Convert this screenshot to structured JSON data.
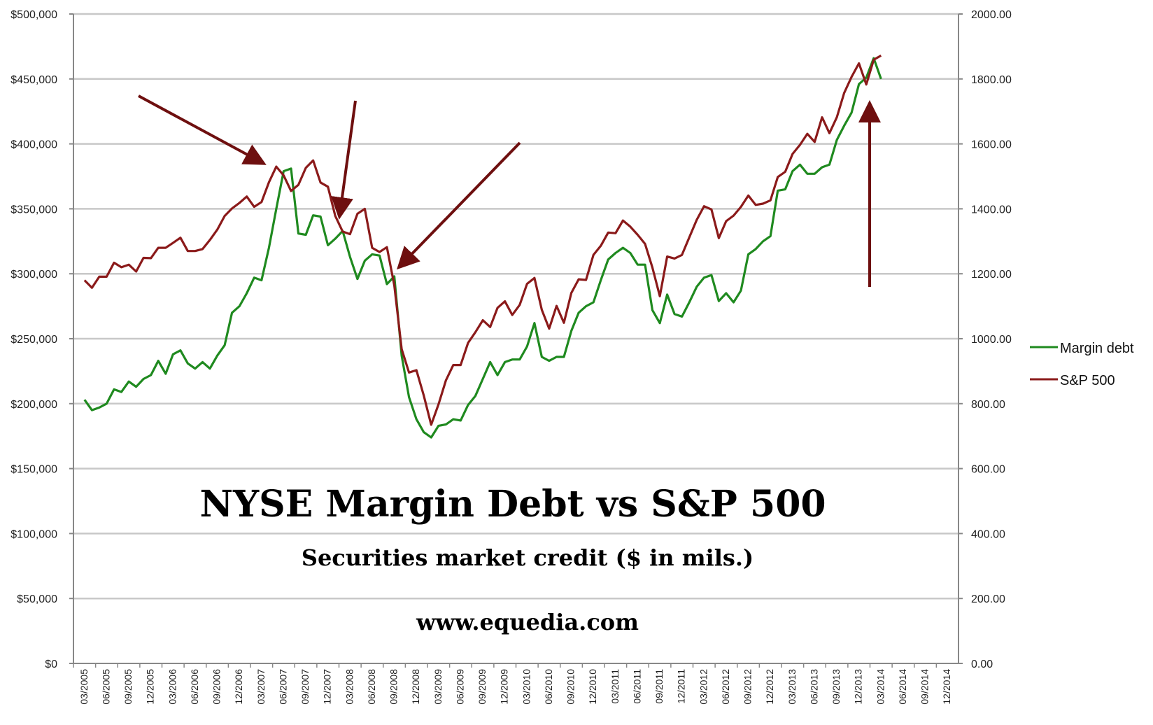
{
  "chart_data": {
    "type": "line",
    "title": "NYSE Margin Debt vs S&P 500",
    "subtitle": "Securities market credit ($ in mils.)",
    "source_text": "www.equedia.com",
    "y_left": {
      "ylim": [
        0,
        500000
      ],
      "ticks": [
        0,
        50000,
        100000,
        150000,
        200000,
        250000,
        300000,
        350000,
        400000,
        450000,
        500000
      ],
      "tick_labels": [
        "$0",
        "$50,000",
        "$100,000",
        "$150,000",
        "$200,000",
        "$250,000",
        "$300,000",
        "$350,000",
        "$400,000",
        "$450,000",
        "$500,000"
      ]
    },
    "y_right": {
      "ylim": [
        0,
        2000
      ],
      "ticks": [
        0,
        200,
        400,
        600,
        800,
        1000,
        1200,
        1400,
        1600,
        1800,
        2000
      ],
      "tick_labels": [
        "0.00",
        "200.00",
        "400.00",
        "600.00",
        "800.00",
        "1000.00",
        "1200.00",
        "1400.00",
        "1600.00",
        "1800.00",
        "2000.00"
      ]
    },
    "x_ticks": [
      "03/2005",
      "06/2005",
      "09/2005",
      "12/2005",
      "03/2006",
      "06/2006",
      "09/2006",
      "12/2006",
      "03/2007",
      "06/2007",
      "09/2007",
      "12/2007",
      "03/2008",
      "06/2008",
      "09/2008",
      "12/2008",
      "03/2009",
      "06/2009",
      "09/2009",
      "12/2009",
      "03/2010",
      "06/2010",
      "09/2010",
      "12/2010",
      "03/2011",
      "06/2011",
      "09/2011",
      "12/2011",
      "03/2012",
      "06/2012",
      "09/2012",
      "12/2012",
      "03/2013",
      "06/2013",
      "09/2013",
      "12/2013",
      "03/2014",
      "06/2014",
      "09/2014",
      "12/2014"
    ],
    "grid": true,
    "legend_position": "right",
    "series": [
      {
        "name": "Margin debt",
        "axis": "left",
        "color": "#1f8a1f",
        "start": "03/2005",
        "values": [
          203000,
          195000,
          197000,
          200000,
          211000,
          209000,
          217000,
          213000,
          219000,
          222000,
          233000,
          223000,
          238000,
          241000,
          231000,
          227000,
          232000,
          227000,
          237000,
          245000,
          270000,
          275000,
          285000,
          297000,
          295000,
          320000,
          350000,
          379000,
          381000,
          331000,
          330000,
          345000,
          344000,
          322000,
          327000,
          333000,
          313000,
          296000,
          310000,
          315000,
          314000,
          292000,
          298000,
          237000,
          205000,
          188000,
          178000,
          174000,
          183000,
          184000,
          188000,
          187000,
          199000,
          206000,
          219000,
          232000,
          222000,
          232000,
          234000,
          234000,
          244000,
          262000,
          236000,
          233000,
          236000,
          236000,
          256000,
          270000,
          275000,
          278000,
          295000,
          311000,
          316000,
          320000,
          316000,
          307000,
          307000,
          272000,
          262000,
          284000,
          269000,
          267000,
          278000,
          290000,
          297000,
          299000,
          279000,
          285000,
          278000,
          287000,
          315000,
          319000,
          325000,
          329000,
          364000,
          365000,
          379000,
          384000,
          377000,
          377000,
          382000,
          384000,
          403000,
          414000,
          424000,
          446000,
          451000,
          466000,
          450000
        ]
      },
      {
        "name": "S&P 500",
        "axis": "right",
        "color": "#8b1a1a",
        "start": "03/2005",
        "values": [
          1180,
          1157,
          1191,
          1191,
          1234,
          1220,
          1228,
          1207,
          1249,
          1248,
          1280,
          1280,
          1295,
          1311,
          1270,
          1270,
          1276,
          1304,
          1336,
          1378,
          1401,
          1418,
          1438,
          1406,
          1421,
          1482,
          1530,
          1503,
          1455,
          1474,
          1526,
          1549,
          1481,
          1468,
          1378,
          1330,
          1322,
          1385,
          1400,
          1280,
          1267,
          1282,
          1164,
          968,
          896,
          903,
          825,
          735,
          798,
          872,
          919,
          919,
          987,
          1020,
          1057,
          1036,
          1095,
          1115,
          1073,
          1104,
          1169,
          1187,
          1089,
          1031,
          1101,
          1049,
          1141,
          1183,
          1181,
          1258,
          1286,
          1327,
          1325,
          1364,
          1345,
          1320,
          1292,
          1219,
          1131,
          1253,
          1247,
          1258,
          1312,
          1366,
          1408,
          1398,
          1310,
          1362,
          1379,
          1406,
          1441,
          1412,
          1416,
          1426,
          1498,
          1514,
          1569,
          1597,
          1631,
          1606,
          1682,
          1633,
          1682,
          1757,
          1806,
          1848,
          1783,
          1859,
          1872
        ]
      }
    ]
  }
}
